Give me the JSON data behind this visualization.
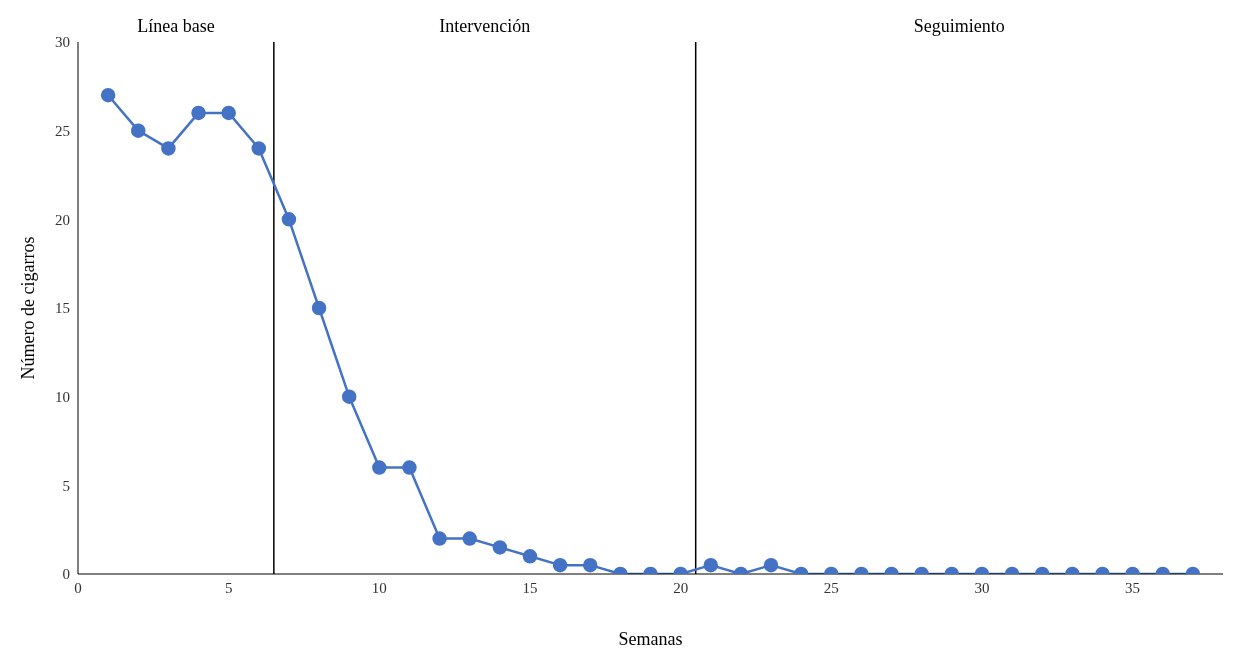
{
  "chart_data": {
    "type": "line",
    "xlabel": "Semanas",
    "ylabel": "Número de cigarros",
    "x": [
      1,
      2,
      3,
      4,
      5,
      6,
      7,
      8,
      9,
      10,
      11,
      12,
      13,
      14,
      15,
      16,
      17,
      18,
      19,
      20,
      21,
      22,
      23,
      24,
      25,
      26,
      27,
      28,
      29,
      30,
      31,
      32,
      33,
      34,
      35,
      36,
      37
    ],
    "series": [
      {
        "color": "#4472c4",
        "values": [
          27,
          25,
          24,
          26,
          26,
          24,
          20,
          15,
          10,
          6,
          6,
          2,
          2,
          1.5,
          1,
          0.5,
          0.5,
          0,
          0,
          0,
          0.5,
          0,
          0.5,
          0,
          0,
          0,
          0,
          0,
          0,
          0,
          0,
          0,
          0,
          0,
          0,
          0,
          0
        ]
      }
    ],
    "xlim": [
      0,
      38
    ],
    "xticks": [
      0,
      5,
      10,
      15,
      20,
      25,
      30,
      35
    ],
    "ylim": [
      0,
      30
    ],
    "yticks": [
      0,
      5,
      10,
      15,
      20,
      25,
      30
    ],
    "ref_lines": [
      {
        "axis": "x",
        "value": 6.5,
        "color": "#000000"
      },
      {
        "axis": "x",
        "value": 20.5,
        "color": "#000000"
      }
    ],
    "annotations": [
      "Línea base",
      "Intervención",
      "Seguimiento"
    ],
    "grid": false,
    "legend": false,
    "marker": "circle",
    "line_style": "solid"
  }
}
